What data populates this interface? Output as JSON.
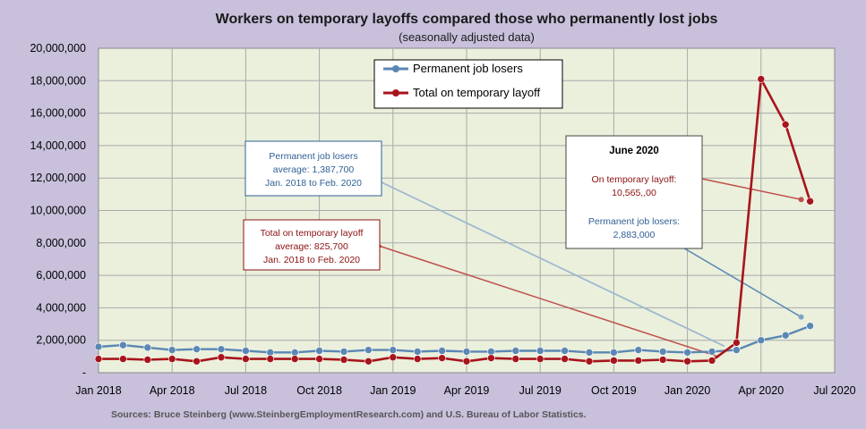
{
  "chart_data": {
    "type": "line",
    "title": "Workers on temporary layoffs compared those who permanently lost jobs",
    "subtitle": "(seasonally adjusted data)",
    "source": "Sources: Bruce Steinberg (www.SteinbergEmploymentResearch.com) and U.S. Bureau of Labor Statistics.",
    "ylim": [
      0,
      20000000
    ],
    "y_ticks": [
      0,
      2000000,
      4000000,
      6000000,
      8000000,
      10000000,
      12000000,
      14000000,
      16000000,
      18000000,
      20000000
    ],
    "y_tick_labels": [
      "-",
      "2,000,000",
      "4,000,000",
      "6,000,000",
      "8,000,000",
      "10,000,000",
      "12,000,000",
      "14,000,000",
      "16,000,000",
      "18,000,000",
      "20,000,000"
    ],
    "x_tick_labels": [
      "Jan 2018",
      "Apr 2018",
      "Jul 2018",
      "Oct 2018",
      "Jan 2019",
      "Apr 2019",
      "Jul 2019",
      "Oct 2019",
      "Jan 2020",
      "Apr 2020",
      "Jul 2020"
    ],
    "x_months": [
      "2018-01",
      "2018-02",
      "2018-03",
      "2018-04",
      "2018-05",
      "2018-06",
      "2018-07",
      "2018-08",
      "2018-09",
      "2018-10",
      "2018-11",
      "2018-12",
      "2019-01",
      "2019-02",
      "2019-03",
      "2019-04",
      "2019-05",
      "2019-06",
      "2019-07",
      "2019-08",
      "2019-09",
      "2019-10",
      "2019-11",
      "2019-12",
      "2020-01",
      "2020-02",
      "2020-03",
      "2020-04",
      "2020-05",
      "2020-06"
    ],
    "grid": true,
    "legend_position": "top-center",
    "series": [
      {
        "name": "Permanent job losers",
        "color": "#5b87b5",
        "values": [
          1600000,
          1700000,
          1550000,
          1400000,
          1450000,
          1450000,
          1350000,
          1250000,
          1250000,
          1350000,
          1300000,
          1400000,
          1400000,
          1300000,
          1350000,
          1300000,
          1300000,
          1350000,
          1350000,
          1350000,
          1250000,
          1250000,
          1400000,
          1300000,
          1250000,
          1300000,
          1400000,
          2000000,
          2300000,
          2883000
        ]
      },
      {
        "name": "Total on temporary layoff",
        "color": "#a8141c",
        "values": [
          850000,
          850000,
          800000,
          850000,
          700000,
          950000,
          850000,
          850000,
          850000,
          850000,
          800000,
          700000,
          950000,
          850000,
          900000,
          700000,
          900000,
          850000,
          850000,
          850000,
          700000,
          750000,
          750000,
          800000,
          700000,
          750000,
          1850000,
          18100000,
          15300000,
          10565000
        ]
      }
    ],
    "annotations": [
      {
        "id": "perm_avg",
        "lines": [
          "Permanent job losers",
          "average: 1,387,700",
          "Jan. 2018 to Feb. 2020"
        ],
        "color": "#2f5f93"
      },
      {
        "id": "temp_avg",
        "lines": [
          "Total on temporary layoff",
          "average: 825,700",
          "Jan. 2018 to Feb. 2020"
        ],
        "color": "#8b1010"
      },
      {
        "id": "june",
        "header": "June 2020",
        "temp_lines": [
          "On temporary layoff:",
          "10,565,,00"
        ],
        "perm_lines": [
          "Permanent job losers:",
          "2,883,000"
        ]
      }
    ]
  }
}
